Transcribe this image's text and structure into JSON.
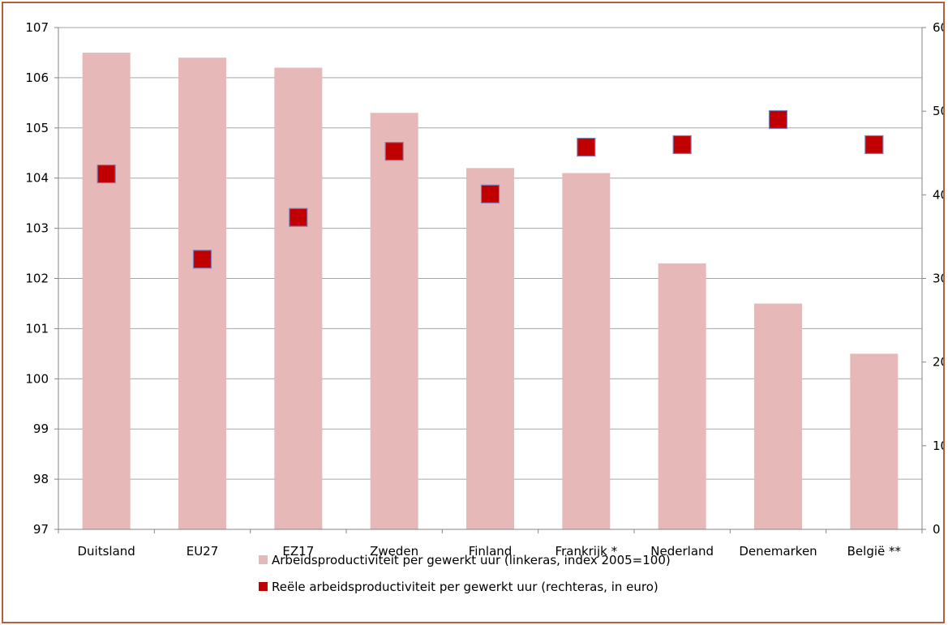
{
  "chart_data": {
    "type": "bar",
    "categories": [
      "Duitsland",
      "EU27",
      "EZ17",
      "Zweden",
      "Finland",
      "Frankrijk *",
      "Nederland",
      "Denemarken",
      "België **"
    ],
    "series": [
      {
        "name": "Arbeidsproductiviteit per gewerkt uur (linkeras, index 2005=100)",
        "type": "bar",
        "axis": "left",
        "color": "#e6b8b7",
        "values": [
          106.5,
          106.4,
          106.2,
          105.3,
          104.2,
          104.1,
          102.3,
          101.5,
          100.5
        ]
      },
      {
        "name": "Reële arbeidsproductiviteit per gewerkt uur (rechteras, in euro)",
        "type": "scatter",
        "axis": "right",
        "color": "#c00000",
        "values": [
          42.5,
          32.3,
          37.3,
          45.2,
          40.1,
          45.7,
          46.0,
          49.0,
          46.0
        ]
      }
    ],
    "left_axis": {
      "ylim": [
        97,
        107
      ],
      "ticks": [
        "97",
        "98",
        "99",
        "100",
        "101",
        "102",
        "103",
        "104",
        "105",
        "106",
        "107"
      ]
    },
    "right_axis": {
      "ylim": [
        0,
        60
      ],
      "ticks": [
        "0",
        "10",
        "20",
        "30",
        "40",
        "50",
        "60"
      ]
    },
    "grid": true,
    "legend_position": "bottom"
  }
}
